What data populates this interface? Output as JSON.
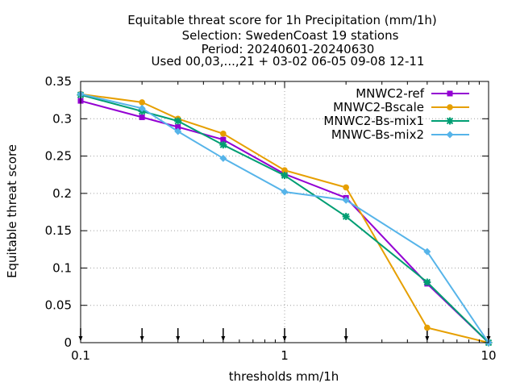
{
  "chart_data": {
    "type": "line",
    "title_lines": [
      "Equitable threat score  for 1h Precipitation (mm/1h)",
      "Selection: SwedenCoast      19 stations",
      "Period: 20240601-20240630",
      "Used 00,03,...,21 + 03-02 06-05 09-08 12-11"
    ],
    "xlabel": "thresholds mm/1h",
    "ylabel": "Equitable threat score",
    "x_scale": "log",
    "xlim": [
      0.1,
      10
    ],
    "ylim": [
      0,
      0.35
    ],
    "x_ticks": [
      {
        "value": 0.1,
        "label": "0.1"
      },
      {
        "value": 1,
        "label": "1"
      },
      {
        "value": 10,
        "label": "10"
      }
    ],
    "y_ticks": [
      {
        "value": 0,
        "label": "0"
      },
      {
        "value": 0.05,
        "label": "0.05"
      },
      {
        "value": 0.1,
        "label": "0.1"
      },
      {
        "value": 0.15,
        "label": "0.15"
      },
      {
        "value": 0.2,
        "label": "0.2"
      },
      {
        "value": 0.25,
        "label": "0.25"
      },
      {
        "value": 0.3,
        "label": "0.3"
      },
      {
        "value": 0.35,
        "label": "0.35"
      }
    ],
    "grid": true,
    "legend_position": "top-right",
    "threshold_markers": [
      0.1,
      0.2,
      0.3,
      0.5,
      1,
      2,
      5,
      10
    ],
    "series": [
      {
        "name": "MNWC2-ref",
        "color": "#9400d3",
        "marker": "square",
        "x": [
          0.1,
          0.2,
          0.3,
          0.5,
          1,
          2,
          5,
          10
        ],
        "y": [
          0.324,
          0.302,
          0.289,
          0.272,
          0.226,
          0.194,
          0.079,
          0.0
        ]
      },
      {
        "name": "MNWC2-Bscale",
        "color": "#e69f00",
        "marker": "circle",
        "x": [
          0.1,
          0.2,
          0.3,
          0.5,
          1,
          2,
          5,
          10
        ],
        "y": [
          0.333,
          0.322,
          0.3,
          0.28,
          0.231,
          0.208,
          0.02,
          0.0
        ]
      },
      {
        "name": "MNWC2-Bs-mix1",
        "color": "#009e73",
        "marker": "star",
        "x": [
          0.1,
          0.2,
          0.3,
          0.5,
          1,
          2,
          5,
          10
        ],
        "y": [
          0.332,
          0.31,
          0.297,
          0.265,
          0.224,
          0.169,
          0.081,
          0.0
        ]
      },
      {
        "name": "MNWC-Bs-mix2",
        "color": "#56b4e9",
        "marker": "diamond",
        "x": [
          0.1,
          0.2,
          0.3,
          0.5,
          1,
          2,
          5,
          10
        ],
        "y": [
          0.333,
          0.314,
          0.283,
          0.247,
          0.202,
          0.191,
          0.122,
          0.0
        ]
      }
    ]
  }
}
